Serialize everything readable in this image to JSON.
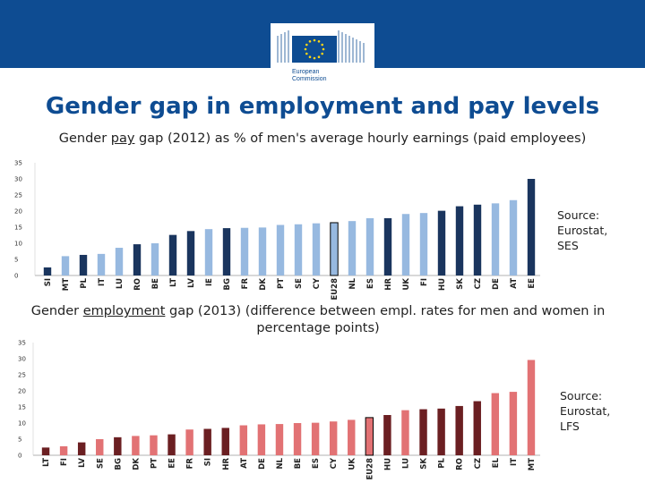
{
  "slide": {
    "title": "Gender gap in employment and pay levels",
    "logo": {
      "line1": "European",
      "line2": "Commission"
    }
  },
  "chart1_title": {
    "pre": "Gender ",
    "underlined": "pay",
    "post": " gap (2012) as % of men's average hourly earnings (paid employees)"
  },
  "chart2_title": {
    "pre": "Gender ",
    "underlined": "employment",
    "post": " gap (2013) (difference between empl. rates for men and women in percentage points)"
  },
  "source1": [
    "Source:",
    "Eurostat,",
    "SES"
  ],
  "source2": [
    "Source:",
    "Eurostat,",
    "LFS"
  ],
  "colors": {
    "blue_dark": "#1a355e",
    "blue_light": "#97b9e0",
    "red_dark": "#6b1f22",
    "red_light": "#e27274",
    "brand": "#0e4c92"
  },
  "chart_data": [
    {
      "type": "bar",
      "title": "Gender pay gap (2012) as % of men's average hourly earnings (paid employees)",
      "ylim": [
        0,
        35
      ],
      "yticks": [
        0,
        5,
        10,
        15,
        20,
        25,
        30,
        35
      ],
      "grid": false,
      "highlight": "EU28",
      "categories": [
        "SI",
        "MT",
        "PL",
        "IT",
        "LU",
        "RO",
        "BE",
        "LT",
        "LV",
        "IE",
        "BG",
        "FR",
        "DK",
        "PT",
        "SE",
        "CY",
        "EU28",
        "NL",
        "ES",
        "HR",
        "UK",
        "FI",
        "HU",
        "SK",
        "CZ",
        "DE",
        "AT",
        "EE"
      ],
      "values": [
        2.5,
        6,
        6.4,
        6.7,
        8.6,
        9.7,
        10,
        12.6,
        13.8,
        14.4,
        14.7,
        14.8,
        14.9,
        15.7,
        15.9,
        16.2,
        16.4,
        16.9,
        17.8,
        17.8,
        19.1,
        19.4,
        20.1,
        21.5,
        22,
        22.4,
        23.4,
        30
      ],
      "shades": [
        "dark",
        "light",
        "dark",
        "light",
        "light",
        "dark",
        "light",
        "dark",
        "dark",
        "light",
        "dark",
        "light",
        "light",
        "light",
        "light",
        "light",
        "eu",
        "light",
        "light",
        "dark",
        "light",
        "light",
        "dark",
        "dark",
        "dark",
        "light",
        "light",
        "dark"
      ]
    },
    {
      "type": "bar",
      "title": "Gender employment gap (2013) (difference between empl. rates for men and women in percentage points)",
      "ylim": [
        0,
        35
      ],
      "yticks": [
        0,
        5,
        10,
        15,
        20,
        25,
        30,
        35
      ],
      "grid": false,
      "highlight": "EU28",
      "categories": [
        "LT",
        "FI",
        "LV",
        "SE",
        "BG",
        "DK",
        "PT",
        "EE",
        "FR",
        "SI",
        "HR",
        "AT",
        "DE",
        "NL",
        "BE",
        "ES",
        "CY",
        "UK",
        "EU28",
        "HU",
        "LU",
        "SK",
        "PL",
        "RO",
        "CZ",
        "EL",
        "IT",
        "MT"
      ],
      "values": [
        2.4,
        2.8,
        4,
        5,
        5.6,
        6,
        6.2,
        6.5,
        8,
        8.2,
        8.5,
        9.3,
        9.6,
        9.7,
        10,
        10.1,
        10.5,
        11,
        11.7,
        12.5,
        14,
        14.3,
        14.5,
        15.3,
        16.8,
        19.3,
        19.7,
        29.6
      ],
      "shades": [
        "dark",
        "light",
        "dark",
        "light",
        "dark",
        "light",
        "light",
        "dark",
        "light",
        "dark",
        "dark",
        "light",
        "light",
        "light",
        "light",
        "light",
        "light",
        "light",
        "eu",
        "dark",
        "light",
        "dark",
        "dark",
        "dark",
        "dark",
        "light",
        "light",
        "light"
      ]
    }
  ]
}
